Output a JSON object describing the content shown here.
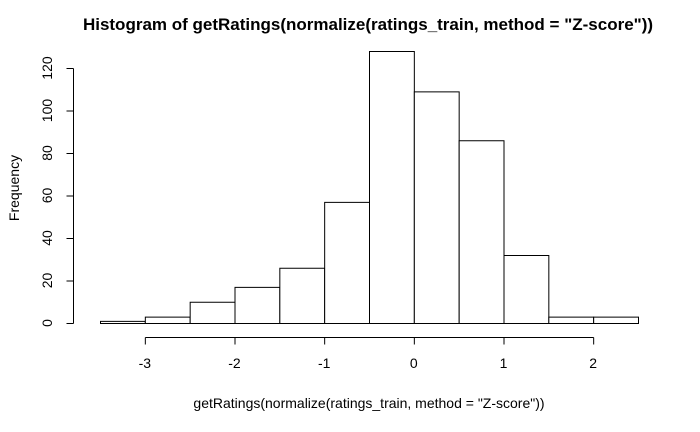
{
  "chart_data": {
    "type": "bar",
    "title": "Histogram of getRatings(normalize(ratings_train, method = \"Z-score\"))",
    "xlabel": "getRatings(normalize(ratings_train, method = \"Z-score\"))",
    "ylabel": "Frequency",
    "xlim": [
      -3.5,
      2.5
    ],
    "ylim": [
      0,
      128
    ],
    "xticks": [
      -3,
      -2,
      -1,
      0,
      1,
      2
    ],
    "yticks": [
      0,
      20,
      40,
      60,
      80,
      100,
      120
    ],
    "bins": [
      {
        "x0": -3.5,
        "x1": -3.0,
        "value": 1
      },
      {
        "x0": -3.0,
        "x1": -2.5,
        "value": 3
      },
      {
        "x0": -2.5,
        "x1": -2.0,
        "value": 10
      },
      {
        "x0": -2.0,
        "x1": -1.5,
        "value": 17
      },
      {
        "x0": -1.5,
        "x1": -1.0,
        "value": 26
      },
      {
        "x0": -1.0,
        "x1": -0.5,
        "value": 57
      },
      {
        "x0": -0.5,
        "x1": 0.0,
        "value": 128
      },
      {
        "x0": 0.0,
        "x1": 0.5,
        "value": 109
      },
      {
        "x0": 0.5,
        "x1": 1.0,
        "value": 86
      },
      {
        "x0": 1.0,
        "x1": 1.5,
        "value": 32
      },
      {
        "x0": 1.5,
        "x1": 2.0,
        "value": 3
      },
      {
        "x0": 2.0,
        "x1": 2.5,
        "value": 3
      }
    ],
    "legend": "none",
    "grid": false,
    "colors": {
      "bar_fill": "#ffffff",
      "bar_stroke": "#000000"
    }
  }
}
